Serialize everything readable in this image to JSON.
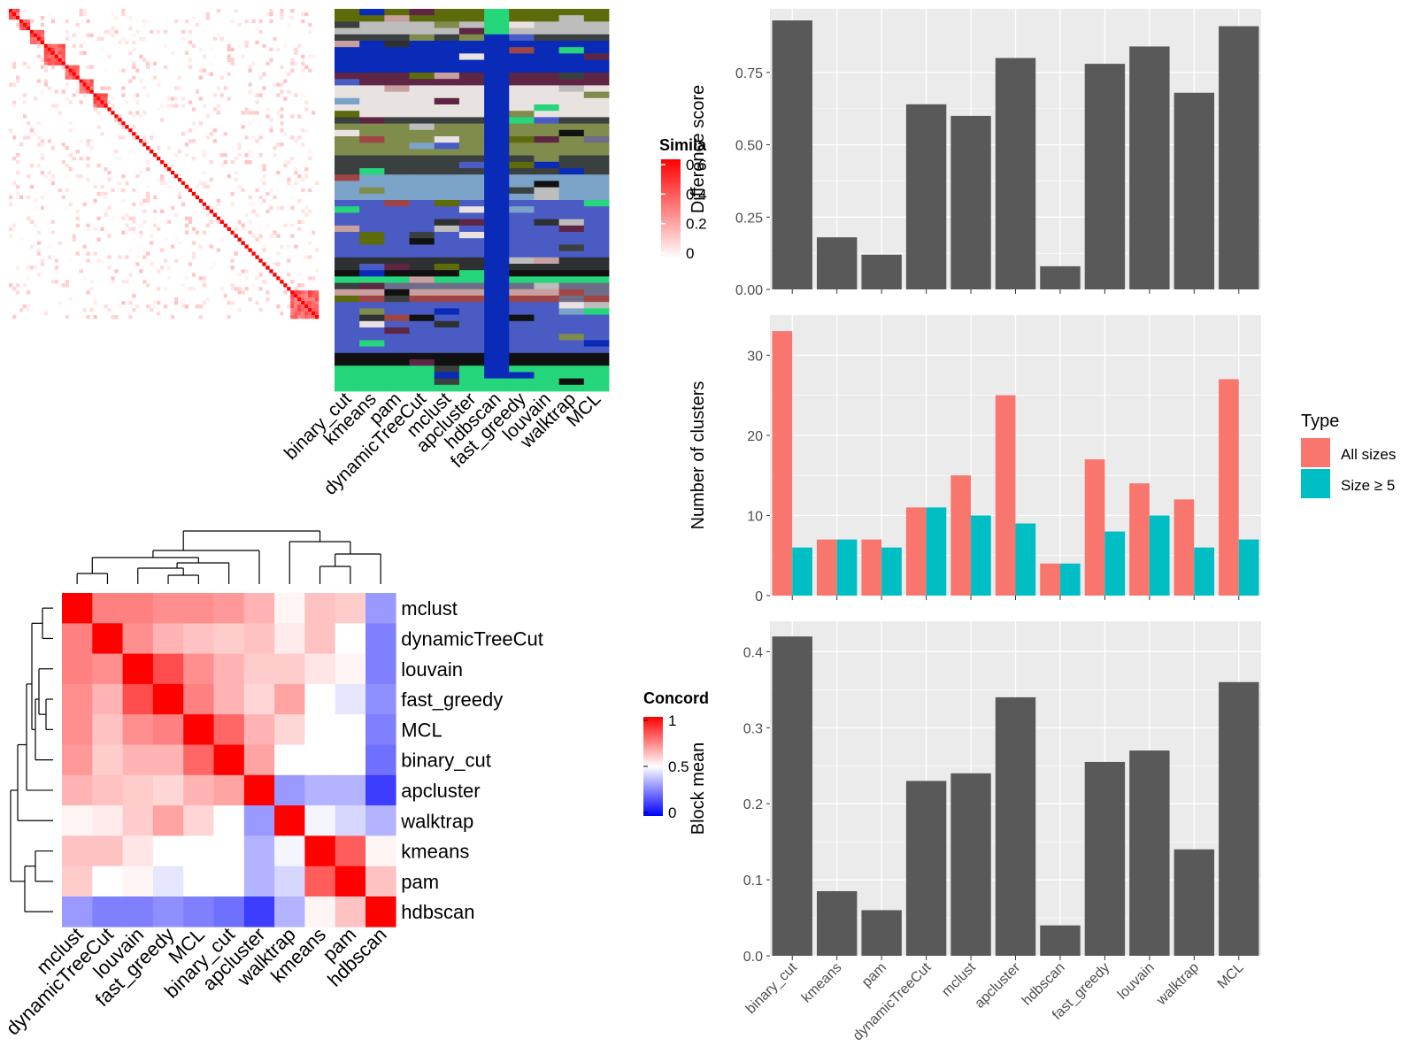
{
  "methods": [
    "binary_cut",
    "kmeans",
    "pam",
    "dynamicTreeCut",
    "mclust",
    "apcluster",
    "hdbscan",
    "fast_greedy",
    "louvain",
    "walktrap",
    "MCL"
  ],
  "similarity_legend": {
    "title": "Simila",
    "ticks": [
      "0.6",
      "0.4",
      "0.2",
      "0"
    ]
  },
  "concordance_legend": {
    "title": "Concord",
    "ticks": [
      "1",
      "0.5",
      "0"
    ]
  },
  "type_legend": {
    "title": "Type",
    "items": [
      "All sizes",
      "Size ≥ 5"
    ]
  },
  "colors": {
    "all_sizes": "#F8766D",
    "size_ge5": "#00BFC4",
    "bar": "#595959",
    "panel": "#EBEBEB"
  },
  "chart_data": [
    {
      "type": "heatmap",
      "title": "",
      "description_ticks": "Similarity matrix with cluster assignment columns",
      "columns": [
        "binary_cut",
        "kmeans",
        "pam",
        "dynamicTreeCut",
        "mclust",
        "apcluster",
        "hdbscan",
        "fast_greedy",
        "louvain",
        "walktrap",
        "MCL"
      ],
      "legend_title": "Simila",
      "legend_range": [
        0,
        0.6
      ]
    },
    {
      "type": "heatmap",
      "title": "",
      "rows": [
        "mclust",
        "dynamicTreeCut",
        "louvain",
        "fast_greedy",
        "MCL",
        "binary_cut",
        "apcluster",
        "walktrap",
        "kmeans",
        "pam",
        "hdbscan"
      ],
      "columns": [
        "mclust",
        "dynamicTreeCut",
        "louvain",
        "fast_greedy",
        "MCL",
        "binary_cut",
        "apcluster",
        "walktrap",
        "kmeans",
        "pam",
        "hdbscan"
      ],
      "values": [
        [
          1.0,
          0.75,
          0.75,
          0.72,
          0.72,
          0.7,
          0.65,
          0.52,
          0.62,
          0.6,
          0.3
        ],
        [
          0.75,
          1.0,
          0.72,
          0.65,
          0.62,
          0.6,
          0.62,
          0.54,
          0.62,
          0.5,
          0.25
        ],
        [
          0.75,
          0.72,
          1.0,
          0.85,
          0.72,
          0.65,
          0.6,
          0.6,
          0.55,
          0.52,
          0.25
        ],
        [
          0.72,
          0.65,
          0.85,
          1.0,
          0.75,
          0.65,
          0.58,
          0.68,
          0.5,
          0.45,
          0.28
        ],
        [
          0.72,
          0.62,
          0.72,
          0.75,
          1.0,
          0.8,
          0.65,
          0.58,
          0.5,
          0.5,
          0.25
        ],
        [
          0.7,
          0.6,
          0.65,
          0.65,
          0.8,
          1.0,
          0.68,
          0.5,
          0.5,
          0.5,
          0.22
        ],
        [
          0.65,
          0.62,
          0.6,
          0.58,
          0.65,
          0.68,
          1.0,
          0.3,
          0.35,
          0.35,
          0.12
        ],
        [
          0.52,
          0.54,
          0.6,
          0.68,
          0.58,
          0.5,
          0.3,
          1.0,
          0.48,
          0.42,
          0.35
        ],
        [
          0.62,
          0.62,
          0.55,
          0.5,
          0.5,
          0.5,
          0.35,
          0.48,
          1.0,
          0.82,
          0.52
        ],
        [
          0.6,
          0.5,
          0.52,
          0.45,
          0.5,
          0.5,
          0.35,
          0.42,
          0.82,
          1.0,
          0.62
        ],
        [
          0.3,
          0.25,
          0.25,
          0.28,
          0.25,
          0.22,
          0.12,
          0.35,
          0.52,
          0.62,
          1.0
        ]
      ],
      "legend_title": "Concord",
      "legend_range": [
        0,
        1
      ]
    },
    {
      "type": "bar",
      "title": "",
      "categories": [
        "binary_cut",
        "kmeans",
        "pam",
        "dynamicTreeCut",
        "mclust",
        "apcluster",
        "hdbscan",
        "fast_greedy",
        "louvain",
        "walktrap",
        "MCL"
      ],
      "values": [
        0.93,
        0.18,
        0.12,
        0.64,
        0.6,
        0.8,
        0.08,
        0.78,
        0.84,
        0.68,
        0.91
      ],
      "xlabel": "",
      "ylabel": "Difference score",
      "ylim": [
        0,
        0.97
      ],
      "yticks": [
        "0.00",
        "0.25",
        "0.50",
        "0.75"
      ]
    },
    {
      "type": "bar",
      "title": "",
      "categories": [
        "binary_cut",
        "kmeans",
        "pam",
        "dynamicTreeCut",
        "mclust",
        "apcluster",
        "hdbscan",
        "fast_greedy",
        "louvain",
        "walktrap",
        "MCL"
      ],
      "series": [
        {
          "name": "All sizes",
          "values": [
            33,
            7,
            7,
            11,
            15,
            25,
            4,
            17,
            14,
            12,
            27
          ]
        },
        {
          "name": "Size ≥ 5",
          "values": [
            6,
            7,
            6,
            11,
            10,
            9,
            4,
            8,
            10,
            6,
            7
          ]
        }
      ],
      "xlabel": "",
      "ylabel": "Number of clusters",
      "ylim": [
        0,
        35
      ],
      "yticks": [
        "0",
        "10",
        "20",
        "30"
      ],
      "legend": "right"
    },
    {
      "type": "bar",
      "title": "",
      "categories": [
        "binary_cut",
        "kmeans",
        "pam",
        "dynamicTreeCut",
        "mclust",
        "apcluster",
        "hdbscan",
        "fast_greedy",
        "louvain",
        "walktrap",
        "MCL"
      ],
      "values": [
        0.42,
        0.085,
        0.06,
        0.23,
        0.24,
        0.34,
        0.04,
        0.255,
        0.27,
        0.14,
        0.36
      ],
      "xlabel": "",
      "ylabel": "Block mean",
      "ylim": [
        0,
        0.44
      ],
      "yticks": [
        "0.0",
        "0.1",
        "0.2",
        "0.3",
        "0.4"
      ]
    }
  ]
}
